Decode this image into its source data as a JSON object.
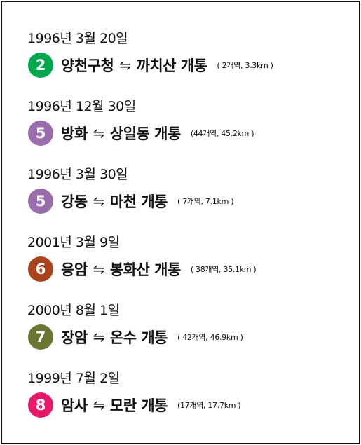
{
  "entries": [
    {
      "date": "1996년 3월 20일",
      "line": "2",
      "color": "#00a84d",
      "from": "양천구청",
      "arrow": "⇋",
      "to": "까치산 개통",
      "detail": "( 2개역, 3.3km )"
    },
    {
      "date": "1996년 12월 30일",
      "line": "5",
      "color": "#996cac",
      "from": "방화",
      "arrow": "⇋",
      "to": "상일동 개통",
      "detail": "(44개역, 45.2km )"
    },
    {
      "date": "1996년 3월 30일",
      "line": "5",
      "color": "#996cac",
      "from": "강동",
      "arrow": "⇋",
      "to": "마천 개통",
      "detail": "( 7개역, 7.1km )"
    },
    {
      "date": "2001년 3월 9일",
      "line": "6",
      "color": "#a9431e",
      "from": "응암",
      "arrow": "⇋",
      "to": "봉화산 개통",
      "detail": "( 38개역, 35.1km )"
    },
    {
      "date": "2000년 8월 1일",
      "line": "7",
      "color": "#697531",
      "from": "장암",
      "arrow": "⇋",
      "to": "온수 개통",
      "detail": "( 42개역, 46.9km )"
    },
    {
      "date": "1999년 7월 2일",
      "line": "8",
      "color": "#e6186c",
      "from": "암사",
      "arrow": "⇋",
      "to": "모란 개통",
      "detail": "(17개역, 17.7km )"
    }
  ]
}
